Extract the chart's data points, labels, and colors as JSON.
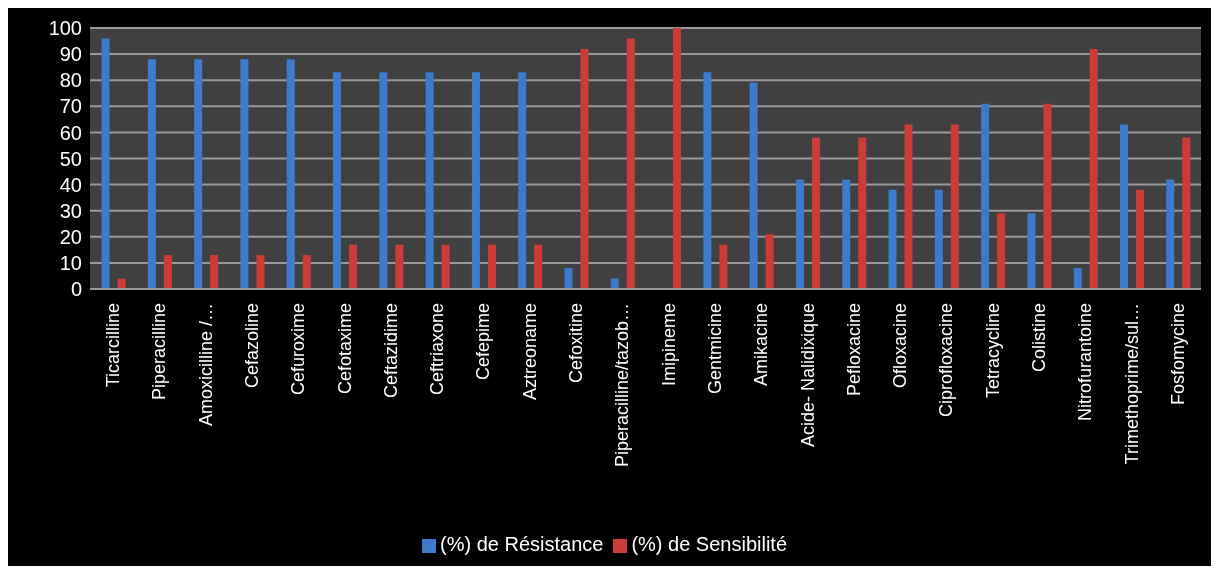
{
  "chart_data": {
    "type": "bar",
    "categories": [
      "Ticarcilline",
      "Piperacilline",
      "Amoxicilline /…",
      "Cefazoline",
      "Cefuroxime",
      "Cefotaxime",
      "Ceftazidime",
      "Ceftriaxone",
      "Cefepime",
      "Aztreoname",
      "Cefoxitine",
      "Piperacilline/tazob…",
      "Imipineme",
      "Gentmicine",
      "Amikacine",
      "Acide- Nalidixique",
      "Pefloxacine",
      "Ofloxacine",
      "Ciprofloxacine",
      "Tetracycline",
      "Colistine",
      "Nitrofurantoine",
      "Trimethoprime/sul…",
      "Fosfomycine"
    ],
    "series": [
      {
        "name": "(%) de Résistance",
        "color": "#3d7ccc",
        "values": [
          96,
          88,
          88,
          88,
          88,
          83,
          83,
          83,
          83,
          83,
          8,
          4,
          0,
          83,
          79,
          42,
          42,
          38,
          38,
          71,
          29,
          8,
          63,
          42
        ]
      },
      {
        "name": "(%) de Sensibilité",
        "color": "#cc3d3a",
        "values": [
          4,
          13,
          13,
          13,
          13,
          17,
          17,
          17,
          17,
          17,
          92,
          96,
          100,
          17,
          21,
          58,
          58,
          63,
          63,
          29,
          71,
          92,
          38,
          58
        ]
      }
    ],
    "ylim": [
      0,
      100
    ],
    "yticks": [
      0,
      10,
      20,
      30,
      40,
      50,
      60,
      70,
      80,
      90,
      100
    ],
    "grid": "y",
    "legend": "bottom"
  }
}
